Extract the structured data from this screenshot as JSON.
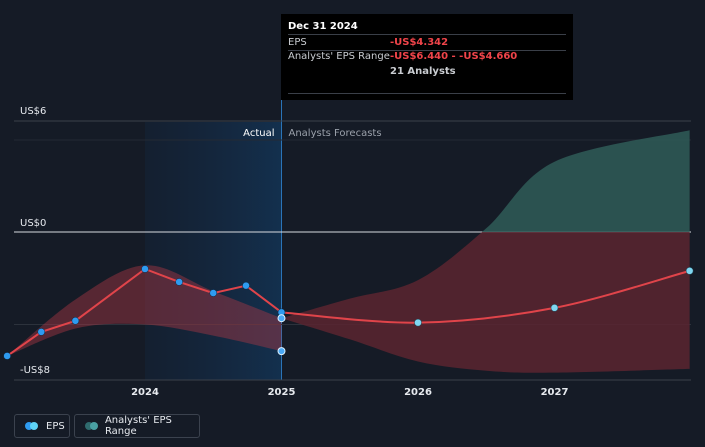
{
  "tooltip": {
    "date": "Dec 31 2024",
    "eps_label": "EPS",
    "eps_value": "-US$4.342",
    "range_label": "Analysts' EPS Range",
    "range_value": "-US$6.440 - -US$4.660",
    "analysts": "21 Analysts"
  },
  "legend": {
    "eps": "EPS",
    "range": "Analysts' EPS Range"
  },
  "colors": {
    "background": "#151b26",
    "eps_line": "#e0444a",
    "eps_point": "#2e9bf0",
    "actual_highlight": "#13304e",
    "forecast_positive": "#2f5c58",
    "forecast_negative": "#5a2430"
  },
  "chart_data": {
    "type": "line",
    "y_ticks": [
      {
        "value": 6,
        "label": "US$6"
      },
      {
        "value": 0,
        "label": "US$0"
      },
      {
        "value": -8,
        "label": "-US$8"
      }
    ],
    "x_ticks": [
      {
        "x": 2024,
        "label": "2024"
      },
      {
        "x": 2025,
        "label": "2025"
      },
      {
        "x": 2026,
        "label": "2026"
      },
      {
        "x": 2027,
        "label": "2027"
      }
    ],
    "xlim": [
      2022.8,
      2027.99
    ],
    "ylim": [
      -8.4,
      6.0
    ],
    "period_labels": {
      "actual": "Actual",
      "forecast": "Analysts Forecasts"
    },
    "actual_period": [
      2024.0,
      2025.0
    ],
    "eps_actual": [
      {
        "x": 2022.99,
        "y": -6.7
      },
      {
        "x": 2023.24,
        "y": -5.4
      },
      {
        "x": 2023.49,
        "y": -4.8
      },
      {
        "x": 2024.0,
        "y": -2.0
      },
      {
        "x": 2024.25,
        "y": -2.7
      },
      {
        "x": 2024.5,
        "y": -3.3
      },
      {
        "x": 2024.74,
        "y": -2.9
      },
      {
        "x": 2025.0,
        "y": -4.342
      }
    ],
    "eps_forecast": [
      {
        "x": 2025.0,
        "y": -4.342
      },
      {
        "x": 2026.0,
        "y": -4.9
      },
      {
        "x": 2027.0,
        "y": -4.1
      },
      {
        "x": 2027.99,
        "y": -2.1
      }
    ],
    "past_range": [
      {
        "x": 2022.99,
        "low": -6.7,
        "high": -6.7
      },
      {
        "x": 2023.5,
        "low": -5.2,
        "high": -3.6
      },
      {
        "x": 2024.0,
        "low": -5.0,
        "high": -1.8
      },
      {
        "x": 2024.5,
        "low": -5.6,
        "high": -3.2
      },
      {
        "x": 2025.0,
        "low": -6.44,
        "high": -4.66
      }
    ],
    "forecast_range": [
      {
        "x": 2025.0,
        "low": -4.66,
        "high": -4.66
      },
      {
        "x": 2025.5,
        "low": -5.8,
        "high": -3.6
      },
      {
        "x": 2026.0,
        "low": -7.0,
        "high": -2.6
      },
      {
        "x": 2026.5,
        "low": -7.5,
        "high": 0.2
      },
      {
        "x": 2027.0,
        "low": -7.6,
        "high": 3.8
      },
      {
        "x": 2027.99,
        "low": -7.4,
        "high": 5.5
      }
    ],
    "extra_points": [
      {
        "x": 2025.0,
        "y": -6.44
      },
      {
        "x": 2025.0,
        "y": -4.66
      }
    ]
  }
}
